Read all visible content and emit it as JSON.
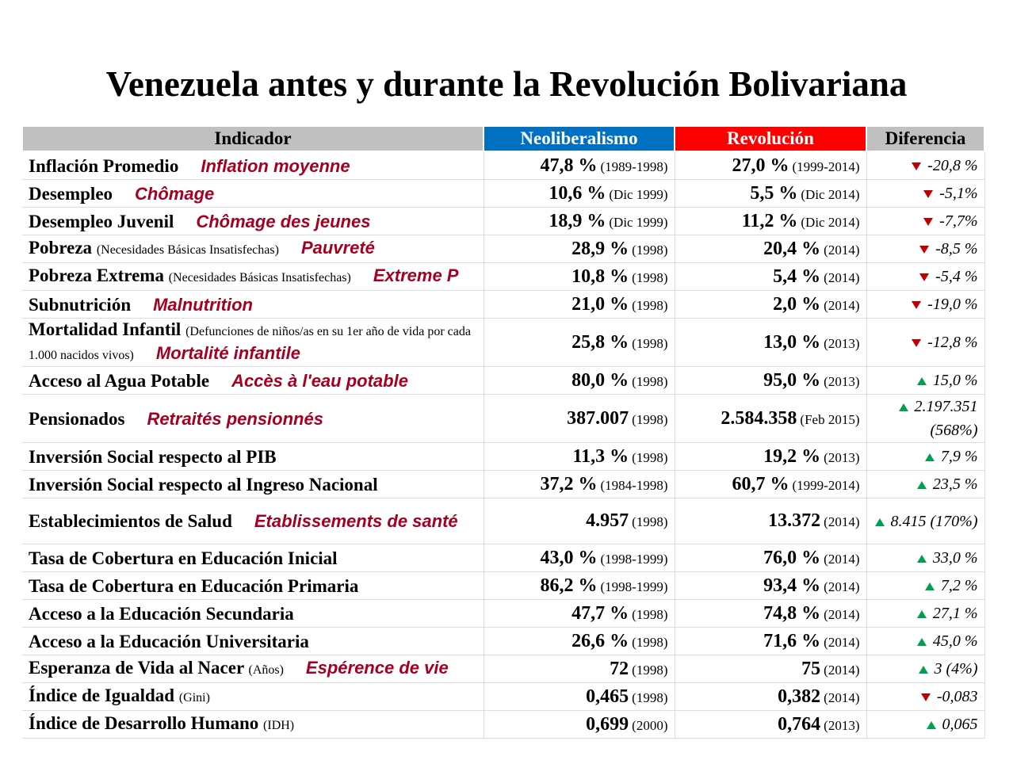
{
  "title": "Venezuela antes y durante la Revolución Bolivariana",
  "table": {
    "columns": [
      "Indicador",
      "Neoliberalismo",
      "Revolución",
      "Diferencia"
    ],
    "rows": [
      {
        "indicator": "Inflación Promedio",
        "translation": "Inflation moyenne",
        "neo": {
          "value": "47,8 %",
          "period": "(1989-1998)"
        },
        "rev": {
          "value": "27,0 %",
          "period": "(1999-2014)"
        },
        "diff": "-20,8 %"
      },
      {
        "indicator": "Desempleo",
        "translation": "Chômage",
        "neo": {
          "value": "10,6 %",
          "period": "(Dic 1999)"
        },
        "rev": {
          "value": "5,5 %",
          "period": "(Dic 2014)"
        },
        "diff": "-5,1%"
      },
      {
        "indicator": "Desempleo Juvenil",
        "translation": "Chômage des jeunes",
        "neo": {
          "value": "18,9 %",
          "period": "(Dic 1999)"
        },
        "rev": {
          "value": "11,2 %",
          "period": "(Dic 2014)"
        },
        "diff": "-7,7%"
      },
      {
        "indicator": "Pobreza",
        "note": "(Necesidades Básicas Insatisfechas)",
        "translation": "Pauvreté",
        "neo": {
          "value": "28,9 %",
          "period": "(1998)"
        },
        "rev": {
          "value": "20,4 %",
          "period": "(2014)"
        },
        "diff": "-8,5 %"
      },
      {
        "indicator": "Pobreza Extrema",
        "note": "(Necesidades Básicas Insatisfechas)",
        "translation": "Extreme P",
        "neo": {
          "value": "10,8 %",
          "period": "(1998)"
        },
        "rev": {
          "value": "5,4 %",
          "period": "(2014)"
        },
        "diff": "-5,4 %"
      },
      {
        "indicator": "Subnutrición",
        "translation": "Malnutrition",
        "neo": {
          "value": "21,0 %",
          "period": "(1998)"
        },
        "rev": {
          "value": "2,0 %",
          "period": "(2014)"
        },
        "diff": "-19,0 %"
      },
      {
        "indicator": "Mortalidad Infantil",
        "note": "(Defunciones de niños/as en su 1er año de vida por cada 1.000 nacidos vivos)",
        "translation": "Mortalité infantile",
        "neo": {
          "value": "25,8 %",
          "period": "(1998)"
        },
        "rev": {
          "value": "13,0 %",
          "period": "(2013)"
        },
        "diff": "-12,8 %"
      },
      {
        "indicator": "Acceso al Agua Potable",
        "translation": "Accès à l'eau potable",
        "neo": {
          "value": "80,0 %",
          "period": "(1998)"
        },
        "rev": {
          "value": "95,0 %",
          "period": "(2013)"
        },
        "diff": "15,0 %"
      },
      {
        "indicator": "Pensionados",
        "translation": "Retraités pensionnés",
        "neo": {
          "value": "387.007",
          "period": "(1998)"
        },
        "rev": {
          "value": "2.584.358",
          "period": "(Feb 2015)"
        },
        "diff": "2.197.351 (568%)"
      },
      {
        "indicator": "Inversión Social respecto al PIB",
        "neo": {
          "value": "11,3 %",
          "period": "(1998)"
        },
        "rev": {
          "value": "19,2 %",
          "period": "(2013)"
        },
        "diff": "7,9 %"
      },
      {
        "indicator": "Inversión Social respecto al Ingreso Nacional",
        "neo": {
          "value": "37,2 %",
          "period": "(1984-1998)"
        },
        "rev": {
          "value": "60,7 %",
          "period": "(1999-2014)"
        },
        "diff": "23,5 %"
      },
      {
        "indicator": "Establecimientos de Salud",
        "translation": "Etablissements de santé",
        "neo": {
          "value": "4.957",
          "period": "(1998)"
        },
        "rev": {
          "value": "13.372",
          "period": "(2014)"
        },
        "diff": "8.415 (170%)"
      },
      {
        "indicator": "Tasa de Cobertura en Educación Inicial",
        "neo": {
          "value": "43,0 %",
          "period": "(1998-1999)"
        },
        "rev": {
          "value": "76,0 %",
          "period": "(2014)"
        },
        "diff": "33,0 %"
      },
      {
        "indicator": "Tasa de Cobertura en Educación Primaria",
        "neo": {
          "value": "86,2 %",
          "period": "(1998-1999)"
        },
        "rev": {
          "value": "93,4 %",
          "period": "(2014)"
        },
        "diff": "7,2 %"
      },
      {
        "indicator": "Acceso a la Educación Secundaria",
        "neo": {
          "value": "47,7 %",
          "period": "(1998)"
        },
        "rev": {
          "value": "74,8 %",
          "period": "(2014)"
        },
        "diff": "27,1 %"
      },
      {
        "indicator": "Acceso a la Educación Universitaria",
        "neo": {
          "value": "26,6 %",
          "period": "(1998)"
        },
        "rev": {
          "value": "71,6 %",
          "period": "(2014)"
        },
        "diff": "45,0 %"
      },
      {
        "indicator": "Esperanza de Vida al Nacer",
        "note": "(Años)",
        "translation": "Espérence de vie",
        "neo": {
          "value": "72",
          "period": "(1998)"
        },
        "rev": {
          "value": "75",
          "period": "(2014)"
        },
        "diff": "3 (4%)"
      },
      {
        "indicator": "Índice de Igualdad",
        "note": "(Gini)",
        "neo": {
          "value": "0,465",
          "period": "(1998)"
        },
        "rev": {
          "value": "0,382",
          "period": "(2014)"
        },
        "diff": "-0,083"
      },
      {
        "indicator": "Índice de Desarrollo Humano",
        "note": "(IDH)",
        "neo": {
          "value": "0,699",
          "period": "(2000)"
        },
        "rev": {
          "value": "0,764",
          "period": "(2013)"
        },
        "diff": "0,065"
      }
    ]
  }
}
